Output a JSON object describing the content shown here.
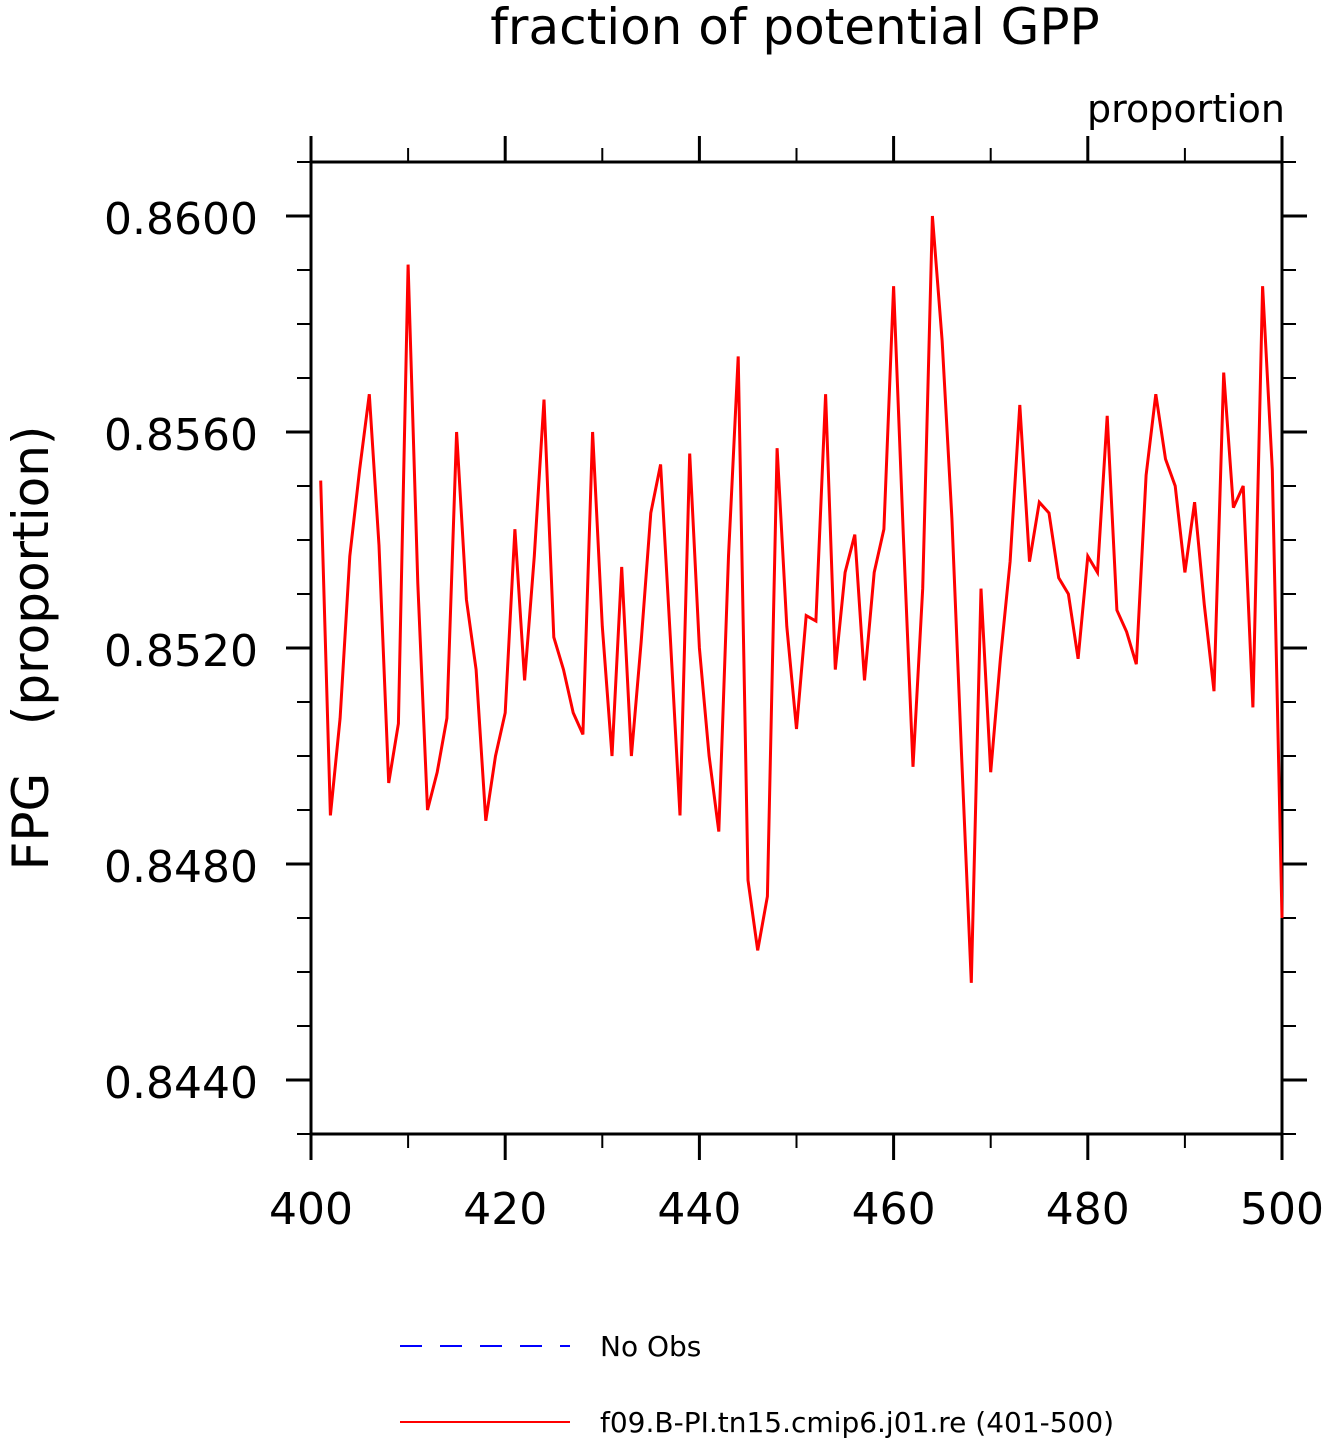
{
  "chart_data": {
    "type": "line",
    "title": "fraction of potential GPP",
    "units_label": "proportion",
    "ylabel": "FPG   (proportion)",
    "xlabel": "",
    "xlim": [
      400,
      500
    ],
    "ylim": [
      0.843,
      0.861
    ],
    "x_ticks": [
      400,
      420,
      440,
      460,
      480,
      500
    ],
    "x_tick_labels": [
      "400",
      "420",
      "440",
      "460",
      "480",
      "500"
    ],
    "x_minor_ticks": [
      410,
      430,
      450,
      470,
      490
    ],
    "y_ticks": [
      0.844,
      0.848,
      0.852,
      0.856,
      0.86
    ],
    "y_tick_labels": [
      "0.8440",
      "0.8480",
      "0.8520",
      "0.8560",
      "0.8600"
    ],
    "y_minor_ticks": [
      0.843,
      0.845,
      0.846,
      0.847,
      0.849,
      0.85,
      0.851,
      0.853,
      0.854,
      0.855,
      0.857,
      0.858,
      0.859,
      0.861
    ],
    "grid": false,
    "legend_position": "bottom-center",
    "series": [
      {
        "name": "No Obs",
        "color": "#0000ff",
        "dash": "dashed",
        "x": [],
        "y": []
      },
      {
        "name": "f09.B-PI.tn15.cmip6.j01.re (401-500)",
        "color": "#ff0000",
        "dash": "solid",
        "x": [
          401,
          402,
          403,
          404,
          405,
          406,
          407,
          408,
          409,
          410,
          411,
          412,
          413,
          414,
          415,
          416,
          417,
          418,
          419,
          420,
          421,
          422,
          423,
          424,
          425,
          426,
          427,
          428,
          429,
          430,
          431,
          432,
          433,
          434,
          435,
          436,
          437,
          438,
          439,
          440,
          441,
          442,
          443,
          444,
          445,
          446,
          447,
          448,
          449,
          450,
          451,
          452,
          453,
          454,
          455,
          456,
          457,
          458,
          459,
          460,
          461,
          462,
          463,
          464,
          465,
          466,
          467,
          468,
          469,
          470,
          471,
          472,
          473,
          474,
          475,
          476,
          477,
          478,
          479,
          480,
          481,
          482,
          483,
          484,
          485,
          486,
          487,
          488,
          489,
          490,
          491,
          492,
          493,
          494,
          495,
          496,
          497,
          498,
          499,
          500
        ],
        "y": [
          0.8551,
          0.8489,
          0.8507,
          0.8537,
          0.8553,
          0.8567,
          0.8539,
          0.8495,
          0.8506,
          0.8591,
          0.8532,
          0.849,
          0.8497,
          0.8507,
          0.856,
          0.8529,
          0.8516,
          0.8488,
          0.85,
          0.8508,
          0.8542,
          0.8514,
          0.8537,
          0.8566,
          0.8522,
          0.8516,
          0.8508,
          0.8504,
          0.856,
          0.8524,
          0.85,
          0.8535,
          0.85,
          0.8521,
          0.8545,
          0.8554,
          0.8522,
          0.8489,
          0.8556,
          0.852,
          0.85,
          0.8486,
          0.8537,
          0.8574,
          0.8477,
          0.8464,
          0.8474,
          0.8557,
          0.8524,
          0.8505,
          0.8526,
          0.8525,
          0.8567,
          0.8516,
          0.8534,
          0.8541,
          0.8514,
          0.8534,
          0.8542,
          0.8587,
          0.8541,
          0.8498,
          0.8531,
          0.86,
          0.8577,
          0.8544,
          0.85,
          0.8458,
          0.8531,
          0.8497,
          0.8518,
          0.8536,
          0.8565,
          0.8536,
          0.8547,
          0.8545,
          0.8533,
          0.853,
          0.8518,
          0.8537,
          0.8534,
          0.8563,
          0.8527,
          0.8523,
          0.8517,
          0.8552,
          0.8567,
          0.8555,
          0.855,
          0.8534,
          0.8547,
          0.8528,
          0.8512,
          0.8571,
          0.8546,
          0.855,
          0.8509,
          0.8587,
          0.8553,
          0.847
        ]
      }
    ]
  }
}
